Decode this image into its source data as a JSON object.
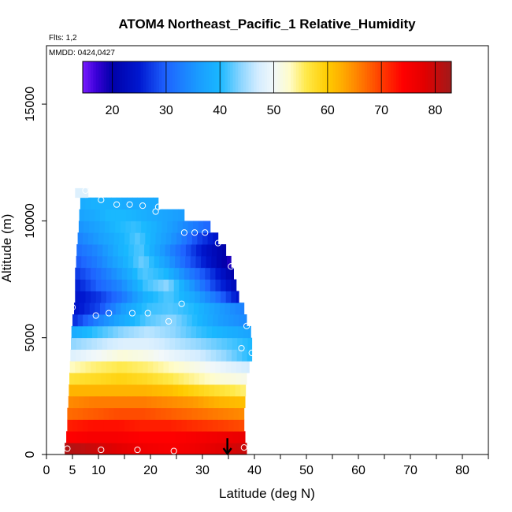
{
  "chart_data": {
    "type": "heatmap",
    "title": "ATOM4 Northeast_Pacific_1 Relative_Humidity",
    "subtitle_flights": "Flts: 1,2",
    "subtitle_dates": "MMDD: 0424,0427",
    "xlabel": "Latitude (deg N)",
    "ylabel": "Altitude (m)",
    "xlim": [
      0,
      85
    ],
    "ylim": [
      0,
      17500
    ],
    "x_ticks": [
      0,
      5,
      10,
      20,
      30,
      40,
      50,
      60,
      70,
      80
    ],
    "x_minor_ticks": [
      15,
      25,
      35,
      45,
      55,
      65,
      75,
      85
    ],
    "y_ticks": [
      0,
      5000,
      10000,
      15000
    ],
    "colorbar": {
      "min": 14.5,
      "max": 83,
      "ticks": [
        20,
        30,
        40,
        50,
        60,
        70,
        80
      ],
      "stops": [
        {
          "v": 14.5,
          "c": "#7a1cff"
        },
        {
          "v": 17,
          "c": "#3a00d8"
        },
        {
          "v": 20,
          "c": "#0000a8"
        },
        {
          "v": 25,
          "c": "#0018d0"
        },
        {
          "v": 30,
          "c": "#1e64ff"
        },
        {
          "v": 36,
          "c": "#1a9cff"
        },
        {
          "v": 40,
          "c": "#19b8ff"
        },
        {
          "v": 44,
          "c": "#8fd6ff"
        },
        {
          "v": 47,
          "c": "#d2ecff"
        },
        {
          "v": 50,
          "c": "#f2f8fa"
        },
        {
          "v": 53,
          "c": "#fffcc8"
        },
        {
          "v": 56,
          "c": "#ffe94a"
        },
        {
          "v": 60,
          "c": "#ffcc00"
        },
        {
          "v": 63,
          "c": "#ffa800"
        },
        {
          "v": 66,
          "c": "#ff7c00"
        },
        {
          "v": 70,
          "c": "#ff3c00"
        },
        {
          "v": 74,
          "c": "#ff0000"
        },
        {
          "v": 78,
          "c": "#e20000"
        },
        {
          "v": 83,
          "c": "#a01a1a"
        }
      ]
    },
    "altitude_bins": [
      {
        "z": 250,
        "xmin": 3.5,
        "xmax": 38.5,
        "rh": [
          82,
          80,
          78,
          76,
          75,
          76,
          78,
          80
        ]
      },
      {
        "z": 750,
        "xmin": 3.8,
        "xmax": 38.2,
        "rh": [
          74,
          75,
          75,
          74,
          74,
          75,
          76,
          77
        ]
      },
      {
        "z": 1250,
        "xmin": 4.0,
        "xmax": 38.0,
        "rh": [
          72,
          73,
          73,
          72,
          72,
          71,
          70,
          69
        ]
      },
      {
        "z": 1750,
        "xmin": 4.0,
        "xmax": 38.0,
        "rh": [
          67,
          68,
          69,
          69,
          68,
          67,
          66,
          65
        ]
      },
      {
        "z": 2250,
        "xmin": 4.2,
        "xmax": 38.2,
        "rh": [
          65,
          66,
          66,
          66,
          65,
          64,
          62,
          61
        ]
      },
      {
        "z": 2750,
        "xmin": 4.3,
        "xmax": 38.3,
        "rh": [
          62,
          62,
          62,
          62,
          61,
          59,
          57,
          55
        ]
      },
      {
        "z": 3250,
        "xmin": 4.4,
        "xmax": 38.5,
        "rh": [
          57,
          58,
          59,
          58,
          56,
          54,
          52,
          51
        ]
      },
      {
        "z": 3750,
        "xmin": 4.5,
        "xmax": 39.0,
        "rh": [
          53,
          55,
          56,
          55,
          53,
          51,
          49,
          47
        ]
      },
      {
        "z": 4250,
        "xmin": 4.6,
        "xmax": 39.5,
        "rh": [
          48,
          50,
          52,
          51,
          49,
          47,
          44,
          40
        ]
      },
      {
        "z": 4750,
        "xmin": 4.7,
        "xmax": 39.5,
        "rh": [
          44,
          46,
          48,
          48,
          46,
          44,
          42,
          40
        ]
      },
      {
        "z": 5250,
        "xmin": 4.8,
        "xmax": 39.3,
        "rh": [
          38,
          41,
          44,
          46,
          44,
          41,
          39,
          37
        ]
      },
      {
        "z": 5750,
        "xmin": 5.0,
        "xmax": 38.5,
        "rh": [
          26,
          33,
          38,
          42,
          44,
          40,
          36,
          34
        ]
      },
      {
        "z": 6250,
        "xmin": 5.3,
        "xmax": 38.0,
        "rh": [
          24,
          28,
          36,
          41,
          42,
          40,
          36,
          33
        ]
      },
      {
        "z": 6750,
        "xmin": 5.5,
        "xmax": 37.0,
        "rh": [
          24,
          27,
          32,
          39,
          42,
          38,
          32,
          24
        ]
      },
      {
        "z": 7250,
        "xmin": 5.5,
        "xmax": 36.5,
        "rh": [
          25,
          30,
          34,
          41,
          44,
          36,
          28,
          22
        ]
      },
      {
        "z": 7750,
        "xmin": 5.5,
        "xmax": 36.0,
        "rh": [
          27,
          31,
          36,
          42,
          40,
          33,
          27,
          20
        ]
      },
      {
        "z": 8250,
        "xmin": 5.7,
        "xmax": 35.5,
        "rh": [
          29,
          33,
          38,
          43,
          37,
          30,
          24,
          18
        ]
      },
      {
        "z": 8750,
        "xmin": 5.8,
        "xmax": 34.5,
        "rh": [
          31,
          34,
          39,
          42,
          36,
          30,
          24,
          20
        ]
      },
      {
        "z": 9250,
        "xmin": 6.0,
        "xmax": 33.0,
        "rh": [
          33,
          36,
          39,
          42,
          38,
          34,
          28,
          24
        ]
      },
      {
        "z": 9750,
        "xmin": 6.2,
        "xmax": 31.5,
        "rh": [
          35,
          37,
          40,
          41,
          39,
          36,
          33,
          30
        ]
      },
      {
        "z": 10250,
        "xmin": 6.3,
        "xmax": 26.5,
        "rh": [
          37,
          38,
          40,
          40,
          39,
          38,
          37,
          36
        ]
      },
      {
        "z": 10750,
        "xmin": 6.5,
        "xmax": 21.5,
        "rh": [
          38,
          39,
          39,
          39,
          38,
          38,
          38,
          38
        ]
      },
      {
        "z": 11200,
        "xmin": 5.5,
        "xmax": 8.0,
        "rh": [
          45,
          48,
          48,
          48,
          48,
          48,
          48,
          48
        ]
      }
    ],
    "sample_points": [
      {
        "lat": 4.0,
        "alt": 250
      },
      {
        "lat": 10.5,
        "alt": 200
      },
      {
        "lat": 17.5,
        "alt": 200
      },
      {
        "lat": 24.5,
        "alt": 150
      },
      {
        "lat": 38.0,
        "alt": 300
      },
      {
        "lat": 4.0,
        "alt": 5900
      },
      {
        "lat": 5.0,
        "alt": 6300
      },
      {
        "lat": 9.5,
        "alt": 5950
      },
      {
        "lat": 12.0,
        "alt": 6050
      },
      {
        "lat": 16.5,
        "alt": 6050
      },
      {
        "lat": 19.5,
        "alt": 6050
      },
      {
        "lat": 23.5,
        "alt": 5700
      },
      {
        "lat": 26.0,
        "alt": 6450
      },
      {
        "lat": 37.5,
        "alt": 4550
      },
      {
        "lat": 38.5,
        "alt": 5500
      },
      {
        "lat": 39.5,
        "alt": 4350
      },
      {
        "lat": 35.5,
        "alt": 8050
      },
      {
        "lat": 33.0,
        "alt": 9050
      },
      {
        "lat": 26.5,
        "alt": 9500
      },
      {
        "lat": 28.5,
        "alt": 9500
      },
      {
        "lat": 30.5,
        "alt": 9500
      },
      {
        "lat": 10.5,
        "alt": 10900
      },
      {
        "lat": 13.5,
        "alt": 10700
      },
      {
        "lat": 16.0,
        "alt": 10700
      },
      {
        "lat": 18.5,
        "alt": 10650
      },
      {
        "lat": 21.0,
        "alt": 10400
      },
      {
        "lat": 21.5,
        "alt": 10600
      },
      {
        "lat": 7.5,
        "alt": 11300
      }
    ],
    "arrow_marker": {
      "lat": 34.8,
      "alt_from": 700,
      "alt_to": 0
    }
  }
}
